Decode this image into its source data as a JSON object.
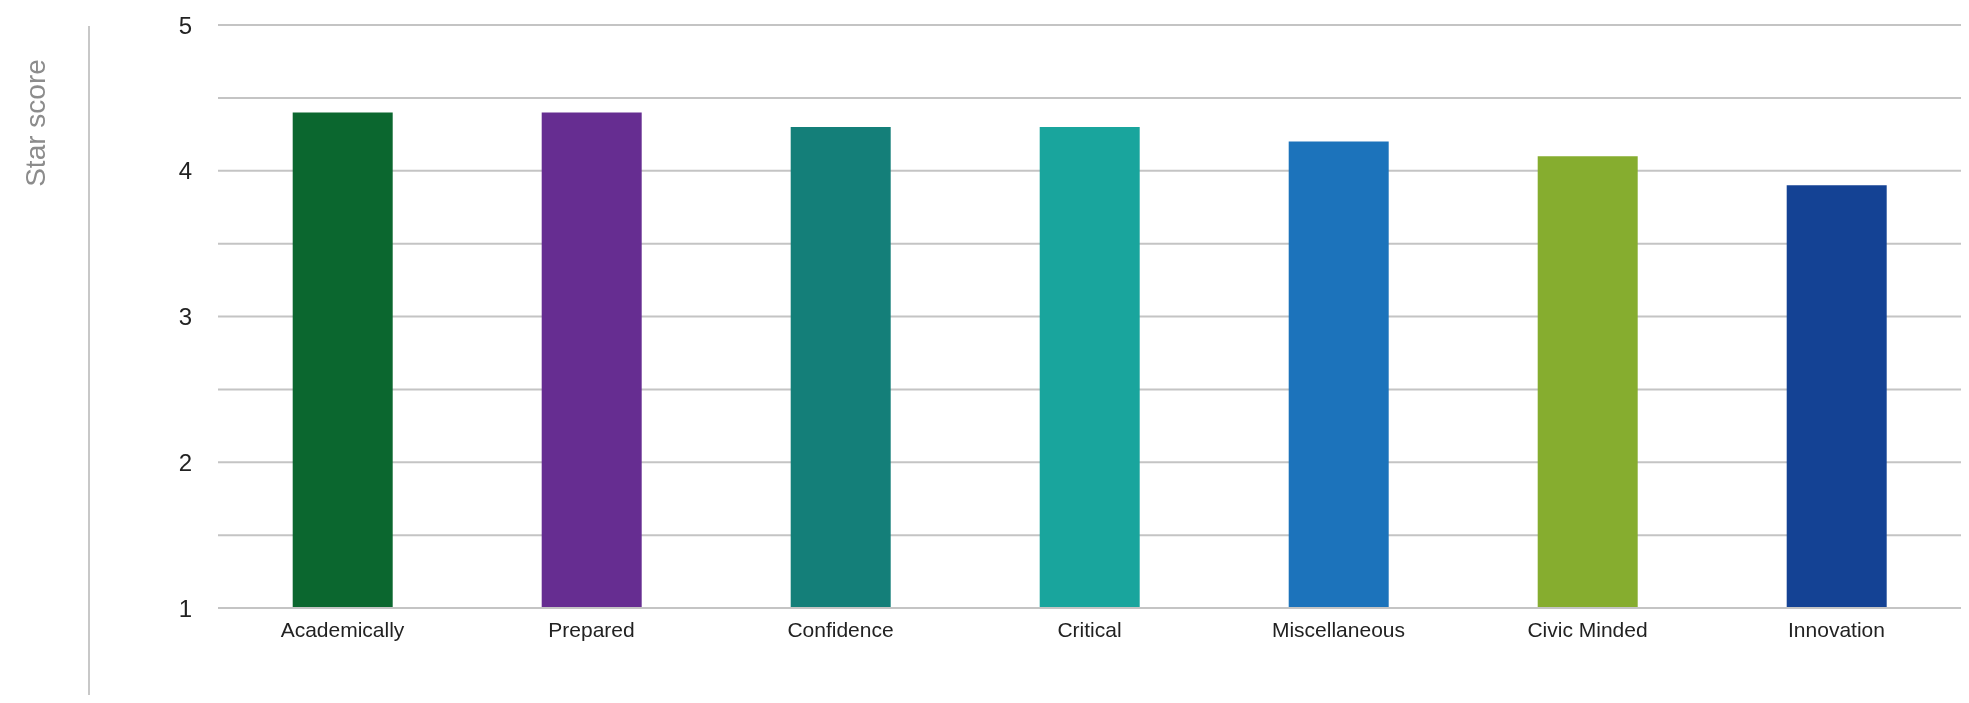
{
  "chart_data": {
    "type": "bar",
    "ylabel": "Star score",
    "categories": [
      "Academically",
      "Prepared",
      "Confidence",
      "Critical",
      "Miscellaneous",
      "Civic Minded",
      "Innovation"
    ],
    "values": [
      4.4,
      4.4,
      4.3,
      4.3,
      4.2,
      4.1,
      3.9
    ],
    "colors": [
      "#0b672f",
      "#662d91",
      "#147f79",
      "#19a59d",
      "#1c73bb",
      "#86ad2f",
      "#144294"
    ],
    "ylim": [
      1,
      5
    ],
    "yticks": [
      1,
      {
        "value": 1.5,
        "label": null
      },
      2,
      {
        "value": 2.5,
        "label": null
      },
      3,
      {
        "value": 3.5,
        "label": null
      },
      4,
      {
        "value": 4.5,
        "label": null
      },
      5
    ],
    "grid": "y"
  }
}
